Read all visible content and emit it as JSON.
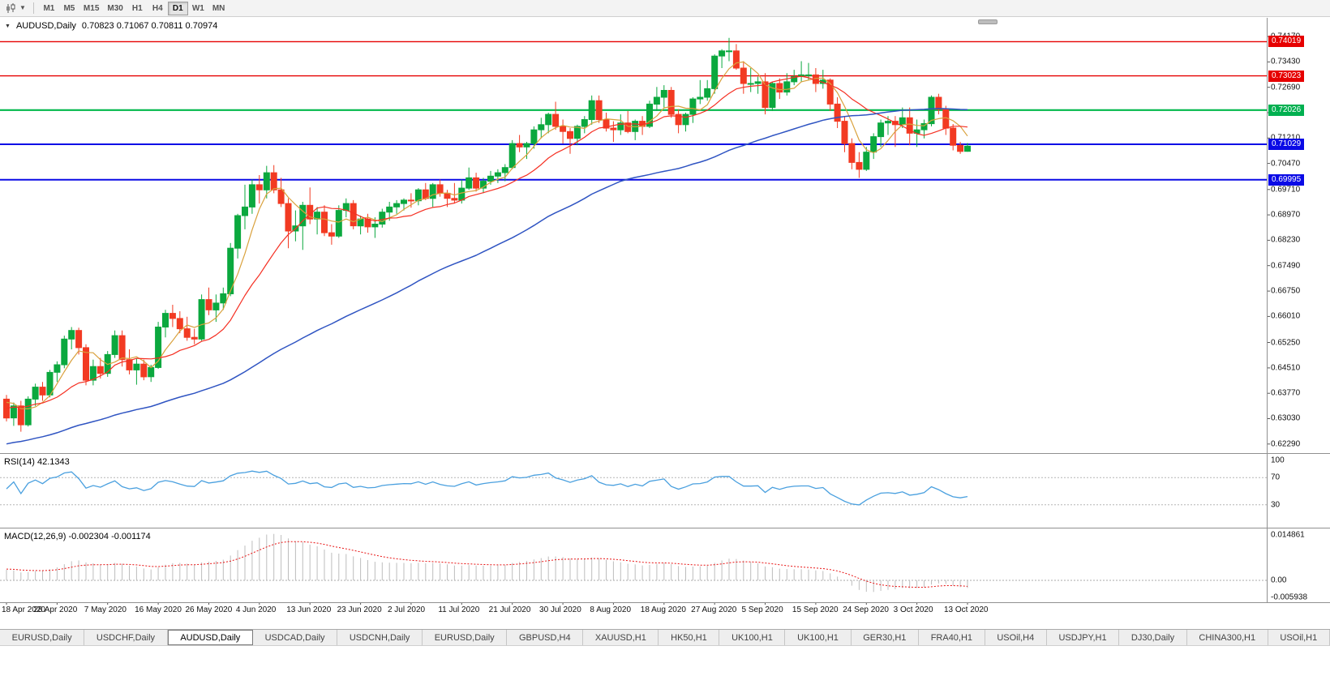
{
  "toolbar": {
    "chart_type_icon": "candlestick-chart-icon",
    "dropdown_icon": "chevron-down-icon",
    "timeframes": [
      "M1",
      "M5",
      "M15",
      "M30",
      "H1",
      "H4",
      "D1",
      "W1",
      "MN"
    ],
    "active_timeframe": "D1"
  },
  "chart_header": {
    "symbol": "AUDUSD,Daily",
    "ohlc": "0.70823 0.71067 0.70811 0.70974",
    "open": "0.70823",
    "high": "0.71067",
    "low": "0.70811",
    "close": "0.70974"
  },
  "price_axis": {
    "view_high": 0.7462,
    "view_low": 0.6212,
    "tick_labels": [
      "0.74170",
      "0.73430",
      "0.72690",
      "0.71950",
      "0.71210",
      "0.70470",
      "0.69710",
      "0.68970",
      "0.68230",
      "0.67490",
      "0.66750",
      "0.66010",
      "0.65250",
      "0.64510",
      "0.63770",
      "0.63030",
      "0.62290"
    ],
    "badges": [
      {
        "value": "0.74019",
        "color": "#e60000"
      },
      {
        "value": "0.73023",
        "color": "#e60000"
      },
      {
        "value": "0.72026",
        "color": "#00b050"
      },
      {
        "value": "0.71029",
        "color": "#0a0ae6"
      },
      {
        "value": "0.69995",
        "color": "#0a0ae6"
      }
    ]
  },
  "levels": [
    {
      "price": 0.74019,
      "color": "#e60000",
      "width": 1.4,
      "name": "resistance-line-0.74019"
    },
    {
      "price": 0.73023,
      "color": "#e60000",
      "width": 1.4,
      "name": "resistance-line-0.73023"
    },
    {
      "price": 0.72026,
      "color": "#00b84a",
      "width": 2.2,
      "name": "pivot-line-0.72026"
    },
    {
      "price": 0.71029,
      "color": "#0a0ae6",
      "width": 2,
      "name": "support-line-0.71029"
    },
    {
      "price": 0.69995,
      "color": "#0a0ae6",
      "width": 2,
      "name": "support-line-0.69995"
    }
  ],
  "date_axis": [
    "18 Apr 2020",
    "28 Apr 2020",
    "7 May 2020",
    "16 May 2020",
    "26 May 2020",
    "4 Jun 2020",
    "13 Jun 2020",
    "23 Jun 2020",
    "2 Jul 2020",
    "11 Jul 2020",
    "21 Jul 2020",
    "30 Jul 2020",
    "8 Aug 2020",
    "18 Aug 2020",
    "27 Aug 2020",
    "5 Sep 2020",
    "15 Sep 2020",
    "24 Sep 2020",
    "3 Oct 2020",
    "13 Oct 2020"
  ],
  "indicators": {
    "rsi": {
      "label": "RSI(14) 42.1343",
      "period": 14,
      "value": "42.1343",
      "axis_labels": [
        "100",
        "70",
        "30"
      ],
      "upper_level": 70,
      "lower_level": 30,
      "line_color": "#4aa0df"
    },
    "macd": {
      "label": "MACD(12,26,9) -0.002304 -0.001174",
      "params": "12,26,9",
      "macd_value": "-0.002304",
      "signal_value": "-0.001174",
      "axis_labels": [
        "0.014861",
        "0.00",
        "-0.005938"
      ],
      "view_high": 0.014861,
      "view_low": -0.005938,
      "histogram_color": "#bdbdbd",
      "signal_color": "#e81414"
    }
  },
  "bottom_tabs": {
    "active_index": 2,
    "labels": [
      "EURUSD,Daily",
      "USDCHF,Daily",
      "AUDUSD,Daily",
      "USDCAD,Daily",
      "USDCNH,Daily",
      "EURUSD,Daily",
      "GBPUSD,H4",
      "XAUUSD,H1",
      "HK50,H1",
      "UK100,H1",
      "UK100,H1",
      "GER30,H1",
      "FRA40,H1",
      "USOil,H4",
      "USDJPY,H1",
      "DJ30,Daily",
      "CHINA300,H1",
      "USOil,H1"
    ]
  },
  "colors": {
    "candle_up": "#0ba83e",
    "candle_down": "#f23a22",
    "background": "#ffffff",
    "separator": "#909090"
  },
  "chart_data": {
    "type": "candlestick",
    "symbol": "AUDUSD",
    "timeframe": "Daily",
    "title": "AUDUSD,Daily 0.70823 0.71067 0.70811 0.70974",
    "ohlc_current": {
      "open": 0.70823,
      "high": 0.71067,
      "low": 0.70811,
      "close": 0.70974
    },
    "y_range": [
      0.6212,
      0.7462
    ],
    "moving_averages": [
      {
        "type": "SMA",
        "period": 5,
        "color": "#d9a13c"
      },
      {
        "type": "SMA",
        "period": 13,
        "color": "#f52f22"
      },
      {
        "type": "SMA",
        "period": 55,
        "color": "#2f54c2"
      }
    ],
    "candles": [
      [
        0.636,
        0.6372,
        0.6295,
        0.6305
      ],
      [
        0.6305,
        0.635,
        0.6282,
        0.634
      ],
      [
        0.634,
        0.6355,
        0.6265,
        0.6285
      ],
      [
        0.6285,
        0.6368,
        0.628,
        0.636
      ],
      [
        0.636,
        0.6405,
        0.634,
        0.6395
      ],
      [
        0.6395,
        0.641,
        0.6355,
        0.6372
      ],
      [
        0.6372,
        0.6445,
        0.6365,
        0.6438
      ],
      [
        0.6438,
        0.647,
        0.641,
        0.646
      ],
      [
        0.646,
        0.6545,
        0.645,
        0.6535
      ],
      [
        0.6535,
        0.657,
        0.6505,
        0.656
      ],
      [
        0.656,
        0.6568,
        0.649,
        0.651
      ],
      [
        0.651,
        0.652,
        0.64,
        0.6415
      ],
      [
        0.6415,
        0.6475,
        0.64,
        0.6455
      ],
      [
        0.6455,
        0.648,
        0.642,
        0.6435
      ],
      [
        0.6435,
        0.65,
        0.6425,
        0.649
      ],
      [
        0.649,
        0.656,
        0.648,
        0.6545
      ],
      [
        0.6545,
        0.656,
        0.6455,
        0.6475
      ],
      [
        0.6475,
        0.6505,
        0.6432,
        0.6445
      ],
      [
        0.6445,
        0.648,
        0.6402,
        0.6462
      ],
      [
        0.6462,
        0.6475,
        0.6415,
        0.6425
      ],
      [
        0.6425,
        0.646,
        0.641,
        0.6452
      ],
      [
        0.6452,
        0.6585,
        0.6448,
        0.657
      ],
      [
        0.657,
        0.662,
        0.654,
        0.661
      ],
      [
        0.661,
        0.6635,
        0.657,
        0.6595
      ],
      [
        0.6595,
        0.6616,
        0.6552,
        0.6565
      ],
      [
        0.6565,
        0.66,
        0.653,
        0.654
      ],
      [
        0.654,
        0.6565,
        0.652,
        0.6535
      ],
      [
        0.6535,
        0.6665,
        0.653,
        0.665
      ],
      [
        0.665,
        0.6685,
        0.6605,
        0.662
      ],
      [
        0.662,
        0.6665,
        0.6585,
        0.664
      ],
      [
        0.664,
        0.6685,
        0.662,
        0.6667
      ],
      [
        0.6667,
        0.6815,
        0.666,
        0.68
      ],
      [
        0.68,
        0.69,
        0.677,
        0.6895
      ],
      [
        0.6895,
        0.6985,
        0.6855,
        0.692
      ],
      [
        0.692,
        0.7,
        0.69,
        0.6985
      ],
      [
        0.6985,
        0.7013,
        0.693,
        0.697
      ],
      [
        0.697,
        0.704,
        0.6945,
        0.702
      ],
      [
        0.702,
        0.7042,
        0.696,
        0.697
      ],
      [
        0.697,
        0.7005,
        0.692,
        0.693
      ],
      [
        0.693,
        0.6945,
        0.68,
        0.685
      ],
      [
        0.685,
        0.691,
        0.682,
        0.6865
      ],
      [
        0.6865,
        0.6935,
        0.6795,
        0.6925
      ],
      [
        0.6925,
        0.6977,
        0.687,
        0.6885
      ],
      [
        0.6885,
        0.692,
        0.684,
        0.6905
      ],
      [
        0.6905,
        0.6925,
        0.6835,
        0.6845
      ],
      [
        0.6845,
        0.687,
        0.681,
        0.6835
      ],
      [
        0.6835,
        0.6925,
        0.683,
        0.691
      ],
      [
        0.691,
        0.6945,
        0.689,
        0.693
      ],
      [
        0.693,
        0.694,
        0.6855,
        0.6865
      ],
      [
        0.6865,
        0.6895,
        0.684,
        0.6885
      ],
      [
        0.6885,
        0.69,
        0.6845,
        0.6862
      ],
      [
        0.6862,
        0.689,
        0.683,
        0.687
      ],
      [
        0.687,
        0.6915,
        0.686,
        0.6905
      ],
      [
        0.6905,
        0.6935,
        0.688,
        0.692
      ],
      [
        0.692,
        0.694,
        0.69,
        0.693
      ],
      [
        0.693,
        0.6945,
        0.691,
        0.694
      ],
      [
        0.694,
        0.696,
        0.6918,
        0.6938
      ],
      [
        0.6938,
        0.6975,
        0.6925,
        0.697
      ],
      [
        0.697,
        0.699,
        0.694,
        0.6945
      ],
      [
        0.6945,
        0.699,
        0.692,
        0.6985
      ],
      [
        0.6985,
        0.7,
        0.695,
        0.696
      ],
      [
        0.696,
        0.697,
        0.692,
        0.6945
      ],
      [
        0.6945,
        0.699,
        0.693,
        0.694
      ],
      [
        0.694,
        0.7,
        0.693,
        0.6975
      ],
      [
        0.6975,
        0.7035,
        0.697,
        0.7005
      ],
      [
        0.7005,
        0.702,
        0.6965,
        0.6975
      ],
      [
        0.6975,
        0.7005,
        0.696,
        0.6995
      ],
      [
        0.6995,
        0.7025,
        0.6985,
        0.701
      ],
      [
        0.701,
        0.703,
        0.699,
        0.702
      ],
      [
        0.702,
        0.7045,
        0.6995,
        0.7035
      ],
      [
        0.7035,
        0.7115,
        0.703,
        0.7105
      ],
      [
        0.7105,
        0.713,
        0.708,
        0.7095
      ],
      [
        0.7095,
        0.711,
        0.706,
        0.7105
      ],
      [
        0.7105,
        0.7155,
        0.709,
        0.7145
      ],
      [
        0.7145,
        0.718,
        0.712,
        0.716
      ],
      [
        0.716,
        0.7195,
        0.7135,
        0.719
      ],
      [
        0.719,
        0.7227,
        0.7145,
        0.7155
      ],
      [
        0.7155,
        0.7175,
        0.7105,
        0.714
      ],
      [
        0.714,
        0.715,
        0.7075,
        0.712
      ],
      [
        0.712,
        0.716,
        0.71,
        0.7155
      ],
      [
        0.7155,
        0.7185,
        0.7135,
        0.7175
      ],
      [
        0.7175,
        0.7245,
        0.716,
        0.723
      ],
      [
        0.723,
        0.7245,
        0.7165,
        0.7175
      ],
      [
        0.7175,
        0.7195,
        0.714,
        0.715
      ],
      [
        0.715,
        0.717,
        0.711,
        0.7145
      ],
      [
        0.7145,
        0.719,
        0.713,
        0.7165
      ],
      [
        0.7165,
        0.72,
        0.7135,
        0.714
      ],
      [
        0.714,
        0.7175,
        0.7115,
        0.717
      ],
      [
        0.717,
        0.7185,
        0.713,
        0.7155
      ],
      [
        0.7155,
        0.723,
        0.715,
        0.722
      ],
      [
        0.722,
        0.727,
        0.72,
        0.724
      ],
      [
        0.724,
        0.7275,
        0.721,
        0.726
      ],
      [
        0.726,
        0.727,
        0.718,
        0.719
      ],
      [
        0.719,
        0.7205,
        0.7135,
        0.716
      ],
      [
        0.716,
        0.7195,
        0.714,
        0.719
      ],
      [
        0.719,
        0.724,
        0.7165,
        0.7235
      ],
      [
        0.7235,
        0.729,
        0.722,
        0.724
      ],
      [
        0.724,
        0.729,
        0.723,
        0.7265
      ],
      [
        0.7265,
        0.7365,
        0.725,
        0.736
      ],
      [
        0.736,
        0.738,
        0.7325,
        0.7375
      ],
      [
        0.7375,
        0.7413,
        0.7345,
        0.7375
      ],
      [
        0.7375,
        0.7395,
        0.732,
        0.7325
      ],
      [
        0.7325,
        0.7345,
        0.725,
        0.728
      ],
      [
        0.728,
        0.7325,
        0.7255,
        0.728
      ],
      [
        0.728,
        0.73,
        0.725,
        0.7285
      ],
      [
        0.7285,
        0.731,
        0.719,
        0.721
      ],
      [
        0.721,
        0.7285,
        0.72,
        0.728
      ],
      [
        0.728,
        0.7295,
        0.7235,
        0.7255
      ],
      [
        0.7255,
        0.731,
        0.7245,
        0.7285
      ],
      [
        0.7285,
        0.732,
        0.7275,
        0.73
      ],
      [
        0.73,
        0.7345,
        0.7285,
        0.7305
      ],
      [
        0.7305,
        0.734,
        0.729,
        0.7305
      ],
      [
        0.7305,
        0.7325,
        0.7255,
        0.728
      ],
      [
        0.728,
        0.732,
        0.7265,
        0.729
      ],
      [
        0.729,
        0.7295,
        0.72,
        0.722
      ],
      [
        0.722,
        0.724,
        0.715,
        0.717
      ],
      [
        0.717,
        0.7185,
        0.708,
        0.7105
      ],
      [
        0.7105,
        0.712,
        0.703,
        0.705
      ],
      [
        0.705,
        0.708,
        0.7005,
        0.703
      ],
      [
        0.703,
        0.7095,
        0.7025,
        0.708
      ],
      [
        0.708,
        0.7135,
        0.706,
        0.7125
      ],
      [
        0.7125,
        0.7175,
        0.7095,
        0.7165
      ],
      [
        0.7165,
        0.7185,
        0.713,
        0.717
      ],
      [
        0.717,
        0.7185,
        0.7095,
        0.716
      ],
      [
        0.716,
        0.721,
        0.715,
        0.718
      ],
      [
        0.718,
        0.721,
        0.71,
        0.7135
      ],
      [
        0.7135,
        0.7175,
        0.7095,
        0.7145
      ],
      [
        0.7145,
        0.7175,
        0.712,
        0.7163
      ],
      [
        0.7163,
        0.7245,
        0.7155,
        0.724
      ],
      [
        0.724,
        0.725,
        0.719,
        0.7205
      ],
      [
        0.7205,
        0.7215,
        0.713,
        0.715
      ],
      [
        0.715,
        0.7162,
        0.7085,
        0.71
      ],
      [
        0.71,
        0.711,
        0.7075,
        0.7082
      ],
      [
        0.70823,
        0.71067,
        0.70811,
        0.70974
      ]
    ]
  }
}
